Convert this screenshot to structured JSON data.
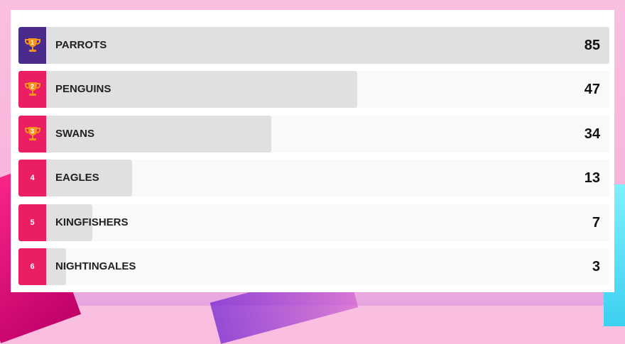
{
  "max_score": 85,
  "colors": {
    "first_badge": "#4a2a8a",
    "badge": "#e91e63",
    "trophy": "#f7941d",
    "bar_fill": "#e0e0e0",
    "bar_track": "#f9f9f9"
  },
  "entries": [
    {
      "rank": "1",
      "name": "PARROTS",
      "score": 85,
      "icon": "trophy-icon"
    },
    {
      "rank": "2",
      "name": "PENGUINS",
      "score": 47,
      "icon": "trophy-icon"
    },
    {
      "rank": "3",
      "name": "SWANS",
      "score": 34,
      "icon": "trophy-icon"
    },
    {
      "rank": "4",
      "name": "EAGLES",
      "score": 13
    },
    {
      "rank": "5",
      "name": "KINGFISHERS",
      "score": 7
    },
    {
      "rank": "6",
      "name": "NIGHTINGALES",
      "score": 3
    }
  ]
}
